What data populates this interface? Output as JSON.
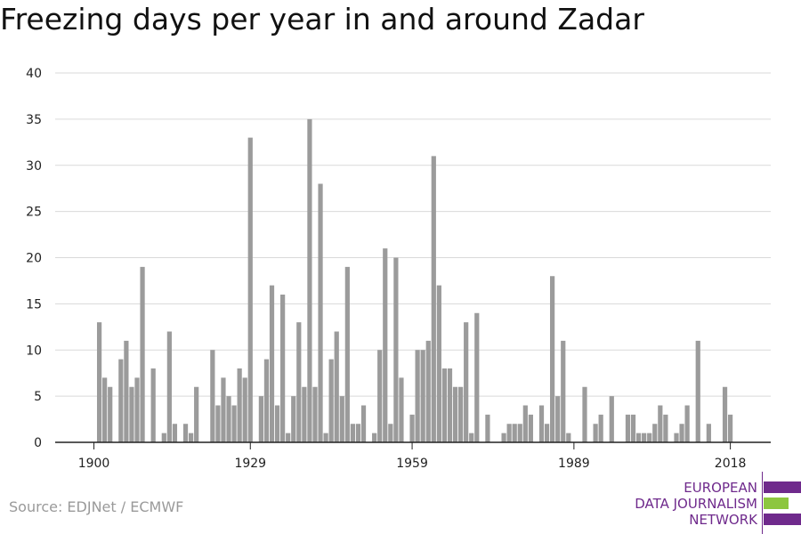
{
  "title": "Freezing days per year in and around Zadar",
  "source": "Source: EDJNet / ECMWF",
  "logo": {
    "line1": "EUROPEAN",
    "line2": "DATA JOURNALISM",
    "line3": "NETWORK",
    "colors": {
      "purple": "#6f2a8c",
      "green": "#8dc63f"
    }
  },
  "colors": {
    "bar": "#9b9b9b",
    "grid": "#d9d9d9",
    "axis": "#222222"
  },
  "chart_data": {
    "type": "bar",
    "title": "Freezing days per year in and around Zadar",
    "xlabel": "",
    "ylabel": "",
    "x": [
      1900,
      1901,
      1902,
      1903,
      1904,
      1905,
      1906,
      1907,
      1908,
      1909,
      1910,
      1911,
      1912,
      1913,
      1914,
      1915,
      1916,
      1917,
      1918,
      1919,
      1920,
      1921,
      1922,
      1923,
      1924,
      1925,
      1926,
      1927,
      1928,
      1929,
      1930,
      1931,
      1932,
      1933,
      1934,
      1935,
      1936,
      1937,
      1938,
      1939,
      1940,
      1941,
      1942,
      1943,
      1944,
      1945,
      1946,
      1947,
      1948,
      1949,
      1950,
      1951,
      1952,
      1953,
      1954,
      1955,
      1956,
      1957,
      1958,
      1959,
      1960,
      1961,
      1962,
      1963,
      1964,
      1965,
      1966,
      1967,
      1968,
      1969,
      1970,
      1971,
      1972,
      1973,
      1974,
      1975,
      1976,
      1977,
      1978,
      1979,
      1980,
      1981,
      1982,
      1983,
      1984,
      1985,
      1986,
      1987,
      1988,
      1989,
      1990,
      1991,
      1992,
      1993,
      1994,
      1995,
      1996,
      1997,
      1998,
      1999,
      2000,
      2001,
      2002,
      2003,
      2004,
      2005,
      2006,
      2007,
      2008,
      2009,
      2010,
      2011,
      2012,
      2013,
      2014,
      2015,
      2016,
      2017,
      2018,
      2019
    ],
    "values": [
      0,
      13,
      7,
      6,
      0,
      9,
      11,
      6,
      7,
      19,
      0,
      8,
      0,
      1,
      12,
      2,
      0,
      2,
      1,
      6,
      0,
      0,
      10,
      4,
      7,
      5,
      4,
      8,
      7,
      33,
      0,
      5,
      9,
      17,
      4,
      16,
      1,
      5,
      13,
      6,
      35,
      6,
      28,
      1,
      9,
      12,
      5,
      19,
      2,
      2,
      4,
      0,
      1,
      10,
      21,
      2,
      20,
      7,
      0,
      3,
      10,
      10,
      11,
      31,
      17,
      8,
      8,
      6,
      6,
      13,
      1,
      14,
      0,
      3,
      0,
      0,
      1,
      2,
      2,
      2,
      4,
      3,
      0,
      4,
      2,
      18,
      5,
      11,
      1,
      0,
      0,
      6,
      0,
      2,
      3,
      0,
      5,
      0,
      0,
      3,
      3,
      1,
      1,
      1,
      2,
      4,
      3,
      0,
      1,
      2,
      4,
      0,
      11,
      0,
      2,
      0,
      0,
      6,
      3,
      0
    ],
    "ylim": [
      0,
      40
    ],
    "yticks": [
      0,
      5,
      10,
      15,
      20,
      25,
      30,
      35,
      40
    ],
    "ytick_labels": [
      "0",
      "5",
      "10",
      "15",
      "20",
      "25",
      "30",
      "35",
      "40"
    ],
    "xticks": [
      1900,
      1929,
      1959,
      1989,
      2018
    ],
    "xtick_labels": [
      "1900",
      "1929",
      "1959",
      "1989",
      "2018"
    ],
    "grid": true,
    "legend": "none"
  }
}
